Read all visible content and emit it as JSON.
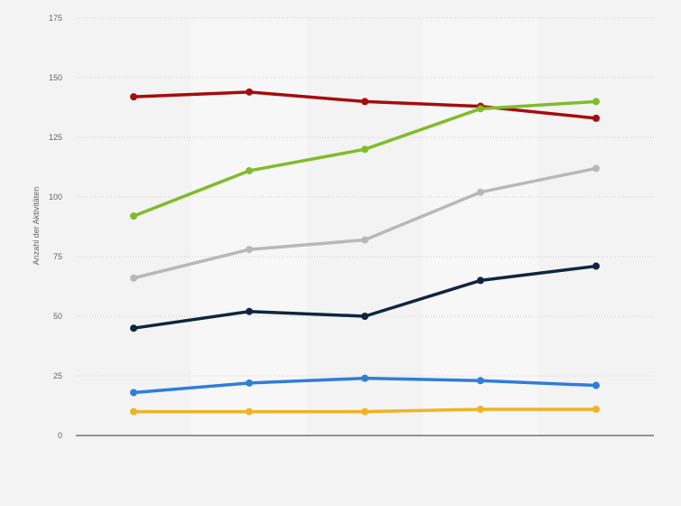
{
  "chart_data": {
    "type": "line",
    "title": "",
    "xlabel": "",
    "ylabel": "Anzahl der Aktivitäten",
    "ylim": [
      0,
      175
    ],
    "yticks": [
      0,
      25,
      50,
      75,
      100,
      125,
      150,
      175
    ],
    "grid": true,
    "legend": "none",
    "x": [
      0,
      1,
      2,
      3,
      4
    ],
    "categories": [
      "",
      "",
      "",
      "",
      ""
    ],
    "series": [
      {
        "color": "#a50d0d",
        "values": [
          142,
          144,
          140,
          138,
          133
        ]
      },
      {
        "color": "#80bc29",
        "values": [
          92,
          111,
          120,
          137,
          140
        ]
      },
      {
        "color": "#b8b8b8",
        "values": [
          66,
          78,
          82,
          102,
          112
        ]
      },
      {
        "color": "#10263f",
        "values": [
          45,
          52,
          50,
          65,
          71
        ]
      },
      {
        "color": "#2f7ed8",
        "values": [
          18,
          22,
          24,
          23,
          21
        ]
      },
      {
        "color": "#f0b323",
        "values": [
          10,
          10,
          10,
          11,
          11
        ]
      }
    ]
  }
}
